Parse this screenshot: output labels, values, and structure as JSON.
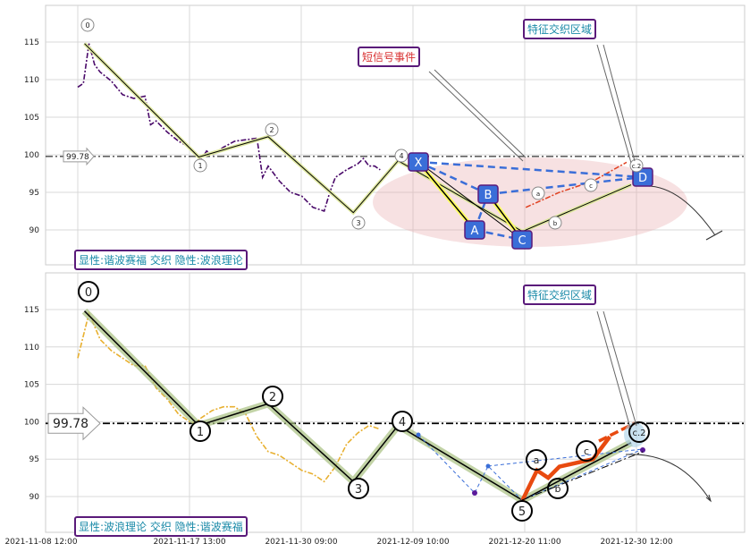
{
  "chart_data": [
    {
      "type": "line",
      "panel": "top",
      "x_ticks": [
        "2021-11-08 12:00",
        "2021-11-17 13:00",
        "2021-11-30 09:00",
        "2021-12-09 10:00",
        "2021-12-20 11:00",
        "2021-12-30 12:00"
      ],
      "y_ticks": [
        90,
        95,
        100,
        105,
        110,
        115
      ],
      "ylim": [
        84.5,
        120
      ],
      "grid": true,
      "reference_line": {
        "value": 99.78,
        "label": "99.78"
      },
      "series": [
        {
          "style": "price-dash-dot",
          "color": "#4a0a6a",
          "points": [
            [
              0,
              109
            ],
            [
              0.5,
              109.5
            ],
            [
              1,
              114.8
            ],
            [
              1.5,
              112
            ],
            [
              2,
              111
            ],
            [
              3,
              109.8
            ],
            [
              4,
              108
            ],
            [
              5,
              107.5
            ],
            [
              6,
              107.8
            ],
            [
              6.5,
              104
            ],
            [
              7,
              104.5
            ],
            [
              8,
              103
            ],
            [
              9,
              101.8
            ],
            [
              10,
              101
            ],
            [
              10.5,
              100
            ],
            [
              11,
              99.3
            ],
            [
              11.5,
              100.5
            ],
            [
              12,
              100
            ],
            [
              13,
              101
            ],
            [
              14,
              101.8
            ],
            [
              15,
              102
            ],
            [
              16,
              102.2
            ],
            [
              16.5,
              97
            ],
            [
              17,
              98.5
            ],
            [
              18,
              96.5
            ],
            [
              19,
              95
            ],
            [
              20,
              94.5
            ],
            [
              21,
              93
            ],
            [
              22,
              92.5
            ],
            [
              22.5,
              95
            ],
            [
              23,
              97
            ],
            [
              24,
              98
            ],
            [
              25,
              98.8
            ],
            [
              25.5,
              99.5
            ],
            [
              26,
              98.5
            ],
            [
              26.5,
              98.5
            ],
            [
              27,
              98
            ]
          ]
        },
        {
          "style": "wave-line",
          "color": "#000000",
          "points": [
            [
              0.6,
              114.8
            ],
            [
              10.8,
              99.7
            ],
            [
              17,
              102.4
            ],
            [
              24.6,
              92.3
            ],
            [
              28.6,
              99.2
            ],
            [
              39.7,
              89.8
            ],
            [
              49.4,
              96
            ]
          ]
        },
        {
          "style": "red-dash-dot",
          "color": "#e04020",
          "points": [
            [
              40,
              93
            ],
            [
              43,
              95
            ],
            [
              46,
              96.5
            ],
            [
              49,
              99
            ]
          ]
        }
      ],
      "wave_labels": [
        "0",
        "1",
        "2",
        "3",
        "4"
      ],
      "pattern_labels": [
        "X",
        "A",
        "B",
        "C",
        "D"
      ],
      "abc_labels": [
        "a",
        "b",
        "c",
        "c.2"
      ],
      "annotations": [
        "短信号事件",
        "特征交织区域"
      ],
      "footer_label": "显性:谐波赛福 交织 隐性:波浪理论"
    },
    {
      "type": "line",
      "panel": "bottom",
      "x_ticks": [
        "2021-11-08 12:00",
        "2021-11-17 13:00",
        "2021-11-30 09:00",
        "2021-12-09 10:00",
        "2021-12-20 11:00",
        "2021-12-30 12:00"
      ],
      "y_ticks": [
        90,
        95,
        100,
        105,
        110,
        115
      ],
      "ylim": [
        85.5,
        120.5
      ],
      "grid": true,
      "reference_line": {
        "value": 99.78,
        "label": "99.78"
      },
      "series": [
        {
          "style": "price-dash-dot",
          "color": "#e8b030",
          "points": [
            [
              0,
              108.5
            ],
            [
              1,
              114.5
            ],
            [
              2,
              111
            ],
            [
              3,
              109.5
            ],
            [
              4,
              108.5
            ],
            [
              5,
              107.5
            ],
            [
              6,
              107.5
            ],
            [
              7,
              104.5
            ],
            [
              8,
              103
            ],
            [
              9,
              101
            ],
            [
              10,
              100
            ],
            [
              10.5,
              99.8
            ],
            [
              11,
              100.5
            ],
            [
              12,
              101.5
            ],
            [
              13,
              102
            ],
            [
              14,
              102
            ],
            [
              15,
              101
            ],
            [
              16,
              98
            ],
            [
              17,
              96
            ],
            [
              18,
              95.5
            ],
            [
              19,
              94.5
            ],
            [
              20,
              93.5
            ],
            [
              21,
              93
            ],
            [
              22,
              92
            ],
            [
              23,
              94
            ],
            [
              24,
              97
            ],
            [
              25,
              98.5
            ],
            [
              26,
              99.5
            ],
            [
              27,
              99
            ]
          ]
        },
        {
          "style": "wave-line",
          "color": "#000000",
          "points": [
            [
              0.6,
              114.8
            ],
            [
              10.8,
              99.5
            ],
            [
              17,
              102.4
            ],
            [
              24.6,
              92
            ],
            [
              28.6,
              99.5
            ],
            [
              39.7,
              89.5
            ],
            [
              49.4,
              97.2
            ]
          ]
        },
        {
          "style": "orange-bold",
          "color": "#e84a10",
          "points": [
            [
              39.7,
              89.5
            ],
            [
              41,
              93.5
            ],
            [
              42,
              92.5
            ],
            [
              43,
              94
            ],
            [
              46,
              95
            ],
            [
              47.5,
              98
            ]
          ]
        }
      ],
      "wave_labels": [
        "0",
        "1",
        "2",
        "3",
        "4",
        "5"
      ],
      "abc_labels": [
        "a",
        "b",
        "c",
        "c.2"
      ],
      "annotations": [
        "特征交织区域"
      ],
      "footer_label": "显性:波浪理论 交织 隐性:谐波赛福"
    }
  ],
  "x_axis_labels": [
    "2021-11-08 12:00",
    "2021-11-17 13:00",
    "2021-11-30 09:00",
    "2021-12-09 10:00",
    "2021-12-20 11:00",
    "2021-12-30 12:00"
  ],
  "labels": {
    "ref_top": "99.78",
    "ref_bottom": "99.78",
    "top_event": "短信号事件",
    "top_region": "特征交织区域",
    "bottom_region": "特征交织区域",
    "top_footer": "显性:谐波赛福 交织 隐性:波浪理论",
    "bottom_footer": "显性:波浪理论 交织 隐性:谐波赛福"
  }
}
